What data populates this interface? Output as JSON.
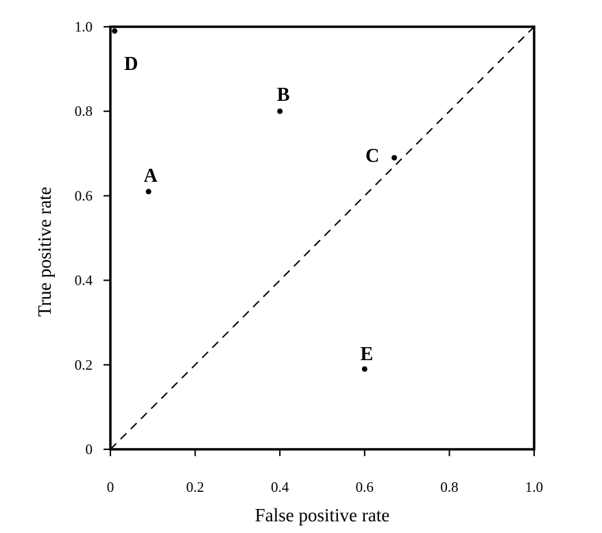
{
  "chart_data": {
    "type": "scatter",
    "title": "",
    "xlabel": "False positive rate",
    "ylabel": "True positive rate",
    "xlim": [
      0,
      1.0
    ],
    "ylim": [
      0,
      1.0
    ],
    "x_ticks": [
      0,
      0.2,
      0.4,
      0.6,
      0.8,
      1.0
    ],
    "x_tick_labels": [
      "0",
      "0.2",
      "0.4",
      "0.6",
      "0.8",
      "1.0"
    ],
    "y_ticks": [
      0,
      0.2,
      0.4,
      0.6,
      0.8,
      1.0
    ],
    "y_tick_labels": [
      "0",
      "0.2",
      "0.4",
      "0.6",
      "0.8",
      "1.0"
    ],
    "grid": false,
    "legend": "none",
    "reference_line": {
      "style": "dashed",
      "from": [
        0,
        0
      ],
      "to": [
        1.0,
        1.0
      ]
    },
    "points": [
      {
        "label": "A",
        "x": 0.09,
        "y": 0.61
      },
      {
        "label": "B",
        "x": 0.4,
        "y": 0.8
      },
      {
        "label": "C",
        "x": 0.67,
        "y": 0.69
      },
      {
        "label": "D",
        "x": 0.01,
        "y": 0.99
      },
      {
        "label": "E",
        "x": 0.6,
        "y": 0.19
      }
    ]
  }
}
